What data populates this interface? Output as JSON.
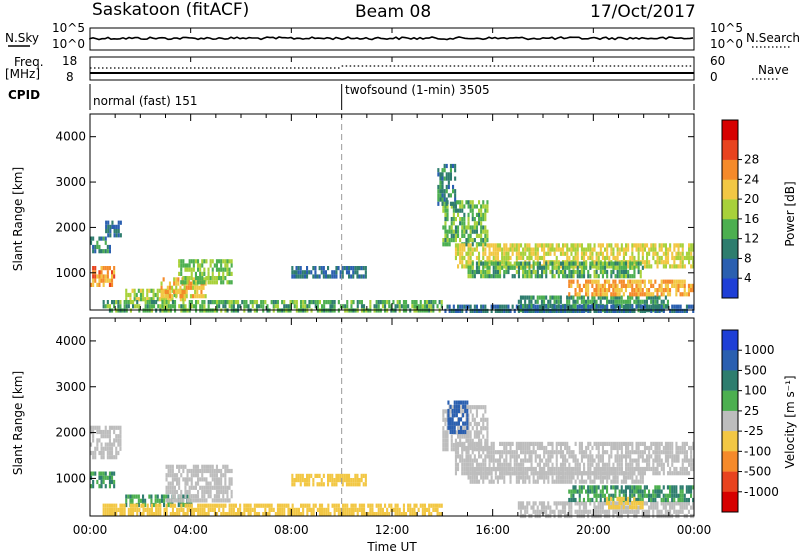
{
  "header": {
    "station": "Saskatoon (fitACF)",
    "beam": "Beam 08",
    "date": "17/Oct/2017"
  },
  "top_panels": {
    "nsky_label": "N.Sky",
    "nsky_ticks": [
      "10^5",
      "10^0"
    ],
    "nsearch_label": "N.Search",
    "nsearch_ticks": [
      "10^5",
      "10^0"
    ],
    "freq_label_line1": "Freq.",
    "freq_label_line2": "[MHz]",
    "freq_ticks": [
      "18",
      "8"
    ],
    "nave_label": "Nave",
    "nave_ticks": [
      "60",
      "0"
    ],
    "cpid_label": "CPID",
    "cpid_segments": [
      {
        "name": "normal (fast) 151",
        "start_hour": 0,
        "end_hour": 10
      },
      {
        "name": "twofsound (1-min) 3505",
        "start_hour": 10,
        "end_hour": 24
      }
    ]
  },
  "chart_data": [
    {
      "type": "heatmap",
      "panel": "power",
      "ylabel": "Slant Range [km]",
      "xlabel": "Time UT",
      "xlim": [
        0,
        24
      ],
      "ylim": [
        180,
        4500
      ],
      "x_ticks": [
        "00:00",
        "04:00",
        "08:00",
        "12:00",
        "16:00",
        "20:00",
        "00:00"
      ],
      "y_ticks": [
        1000,
        2000,
        3000,
        4000
      ],
      "colorbar": {
        "label": "Power [dB]",
        "ticks": [
          "4",
          "8",
          "12",
          "16",
          "20",
          "24",
          "28"
        ],
        "colors": [
          "#1f3fd6",
          "#2a5fb0",
          "#2e7d6e",
          "#4caf50",
          "#a8d13a",
          "#f2c744",
          "#f58a2a",
          "#e8431f",
          "#d60000"
        ]
      },
      "regions": [
        {
          "t0": 0.0,
          "t1": 0.8,
          "r0": 1500,
          "r1": 1800,
          "level": 10
        },
        {
          "t0": 0.6,
          "t1": 1.2,
          "r0": 1800,
          "r1": 2150,
          "level": 8
        },
        {
          "t0": 0.0,
          "t1": 1.0,
          "r0": 750,
          "r1": 1150,
          "level": 26
        },
        {
          "t0": 1.4,
          "t1": 3.8,
          "r0": 400,
          "r1": 650,
          "level": 18
        },
        {
          "t0": 2.8,
          "t1": 4.6,
          "r0": 450,
          "r1": 900,
          "level": 22
        },
        {
          "t0": 3.5,
          "t1": 5.6,
          "r0": 800,
          "r1": 1300,
          "level": 16
        },
        {
          "t0": 8.0,
          "t1": 11.0,
          "r0": 900,
          "r1": 1150,
          "level": 8
        },
        {
          "t0": 0.5,
          "t1": 14.0,
          "r0": 180,
          "r1": 400,
          "level": 14
        },
        {
          "t0": 14.0,
          "t1": 15.8,
          "r0": 1600,
          "r1": 2600,
          "level": 14
        },
        {
          "t0": 13.8,
          "t1": 14.5,
          "r0": 2500,
          "r1": 3400,
          "level": 10
        },
        {
          "t0": 14.5,
          "t1": 24.0,
          "r0": 1150,
          "r1": 1650,
          "level": 20
        },
        {
          "t0": 15.0,
          "t1": 22.0,
          "r0": 950,
          "r1": 1250,
          "level": 14
        },
        {
          "t0": 17.0,
          "t1": 23.0,
          "r0": 180,
          "r1": 500,
          "level": 12
        },
        {
          "t0": 19.0,
          "t1": 24.0,
          "r0": 500,
          "r1": 850,
          "level": 24
        },
        {
          "t0": 14.0,
          "t1": 24.0,
          "r0": 180,
          "r1": 300,
          "level": 8
        }
      ]
    },
    {
      "type": "heatmap",
      "panel": "velocity",
      "ylabel": "Slant Range [km]",
      "xlabel": "Time UT",
      "xlim": [
        0,
        24
      ],
      "ylim": [
        180,
        4500
      ],
      "x_ticks": [
        "00:00",
        "04:00",
        "08:00",
        "12:00",
        "16:00",
        "20:00",
        "00:00"
      ],
      "y_ticks": [
        1000,
        2000,
        3000,
        4000
      ],
      "colorbar": {
        "label": "Velocity [m s⁻¹]",
        "ticks": [
          "1000",
          "500",
          "100",
          "25",
          "-25",
          "-100",
          "-500",
          "-1000"
        ],
        "colors": [
          "#1f3fd6",
          "#2a5fb0",
          "#2e7d6e",
          "#4caf50",
          "#bdbdbd",
          "#f2c744",
          "#f58a2a",
          "#e8431f",
          "#d60000"
        ]
      },
      "regions": [
        {
          "t0": 0.0,
          "t1": 1.2,
          "r0": 1500,
          "r1": 2150,
          "level": 0
        },
        {
          "t0": 0.0,
          "t1": 1.0,
          "r0": 800,
          "r1": 1150,
          "level": 100
        },
        {
          "t0": 1.4,
          "t1": 4.0,
          "r0": 400,
          "r1": 650,
          "level": 100
        },
        {
          "t0": 3.0,
          "t1": 5.6,
          "r0": 500,
          "r1": 1300,
          "level": 0
        },
        {
          "t0": 8.0,
          "t1": 11.0,
          "r0": 900,
          "r1": 1100,
          "level": -60
        },
        {
          "t0": 0.5,
          "t1": 14.0,
          "r0": 180,
          "r1": 450,
          "level": -60
        },
        {
          "t0": 14.0,
          "t1": 15.8,
          "r0": 1600,
          "r1": 2600,
          "level": 0
        },
        {
          "t0": 14.2,
          "t1": 15.0,
          "r0": 2050,
          "r1": 2700,
          "level": 600
        },
        {
          "t0": 14.5,
          "t1": 24.0,
          "r0": 1150,
          "r1": 1800,
          "level": 0
        },
        {
          "t0": 15.0,
          "t1": 22.0,
          "r0": 950,
          "r1": 1250,
          "level": 0
        },
        {
          "t0": 17.0,
          "t1": 24.0,
          "r0": 180,
          "r1": 500,
          "level": 0
        },
        {
          "t0": 19.0,
          "t1": 24.0,
          "r0": 500,
          "r1": 850,
          "level": 100
        },
        {
          "t0": 20.5,
          "t1": 22.0,
          "r0": 400,
          "r1": 600,
          "level": -60
        }
      ]
    }
  ]
}
